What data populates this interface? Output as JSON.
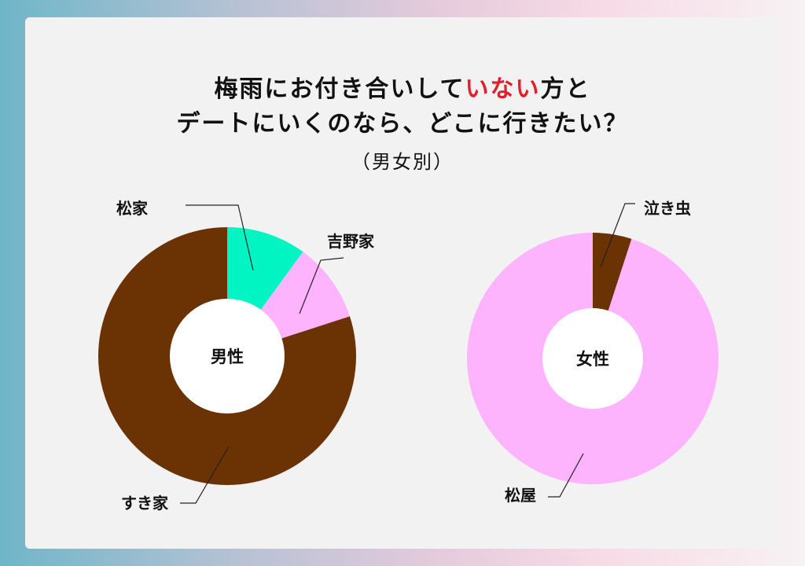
{
  "title": {
    "line1_a": "梅雨にお付き合いして",
    "line1_highlight": "いない",
    "line1_b": "方と",
    "line2": "デートにいくのなら、どこに行きたい？",
    "subtitle": "（男女別）"
  },
  "colors": {
    "brown": "#6b3203",
    "mint": "#00f5c3",
    "pink": "#feb3fd",
    "highlight": "#e0202b"
  },
  "chart_data": [
    {
      "type": "pie",
      "center_label": "男性",
      "slices": [
        {
          "label": "松家",
          "value": 10,
          "color": "#00f5c3"
        },
        {
          "label": "吉野家",
          "value": 10,
          "color": "#feb3fd"
        },
        {
          "label": "すき家",
          "value": 80,
          "color": "#6b3203"
        }
      ]
    },
    {
      "type": "pie",
      "center_label": "女性",
      "slices": [
        {
          "label": "泣き虫",
          "value": 5,
          "color": "#6b3203"
        },
        {
          "label": "松屋",
          "value": 95,
          "color": "#feb3fd"
        }
      ]
    }
  ]
}
